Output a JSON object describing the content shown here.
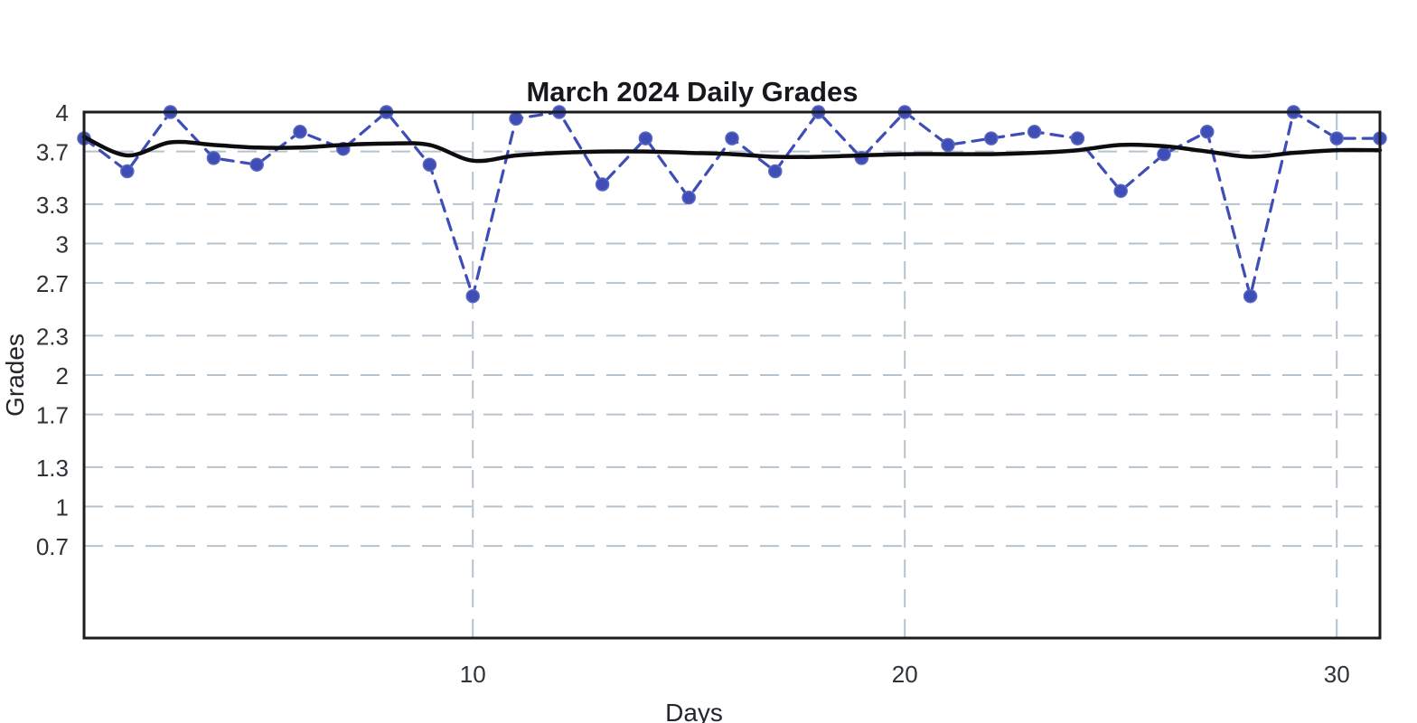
{
  "figure": {
    "background": "#ffffff",
    "frame_color": "#1a1c20",
    "text_color": "#2e3338"
  },
  "chart_data": {
    "type": "line",
    "title": "March 2024 Daily Grades",
    "xlabel": "Days",
    "ylabel": "Grades",
    "x": [
      1,
      2,
      3,
      4,
      5,
      6,
      7,
      8,
      9,
      10,
      11,
      12,
      13,
      14,
      15,
      16,
      17,
      18,
      19,
      20,
      21,
      22,
      23,
      24,
      25,
      26,
      27,
      28,
      29,
      30,
      31
    ],
    "series": [
      {
        "name": "daily_grades",
        "style": "dashed-line-with-markers",
        "color": "#3e4eb6",
        "marker_edge_color": "#5a68c0",
        "values": [
          3.8,
          3.55,
          4.0,
          3.65,
          3.6,
          3.85,
          3.72,
          4.0,
          3.6,
          2.6,
          3.95,
          4.0,
          3.45,
          3.8,
          3.35,
          3.8,
          3.55,
          4.0,
          3.65,
          4.0,
          3.75,
          3.8,
          3.85,
          3.8,
          3.4,
          3.68,
          3.85,
          2.6,
          4.0,
          3.8,
          3.8
        ]
      },
      {
        "name": "smoothed_trend",
        "style": "solid-smooth-line",
        "color": "#0d0d0f",
        "values": [
          3.81,
          3.67,
          3.77,
          3.75,
          3.73,
          3.73,
          3.75,
          3.76,
          3.75,
          3.63,
          3.67,
          3.69,
          3.7,
          3.7,
          3.69,
          3.68,
          3.66,
          3.66,
          3.67,
          3.68,
          3.68,
          3.68,
          3.69,
          3.71,
          3.75,
          3.74,
          3.7,
          3.66,
          3.69,
          3.71,
          3.71
        ]
      }
    ],
    "xlim": [
      1,
      31
    ],
    "ylim": [
      0,
      4
    ],
    "xticks": [
      10,
      20,
      30
    ],
    "xtick_labels": [
      "10",
      "20",
      "30"
    ],
    "yticks": [
      4,
      3.7,
      3.3,
      3,
      2.7,
      2.3,
      2,
      1.7,
      1.3,
      1,
      0.7
    ],
    "ytick_labels": [
      "4",
      "3.7",
      "3.3",
      "3",
      "2.7",
      "2.3",
      "2",
      "1.7",
      "1.3",
      "1",
      "0.7"
    ],
    "grid": "dashed",
    "grid_color": "#b6c3cd",
    "legend": "none"
  }
}
